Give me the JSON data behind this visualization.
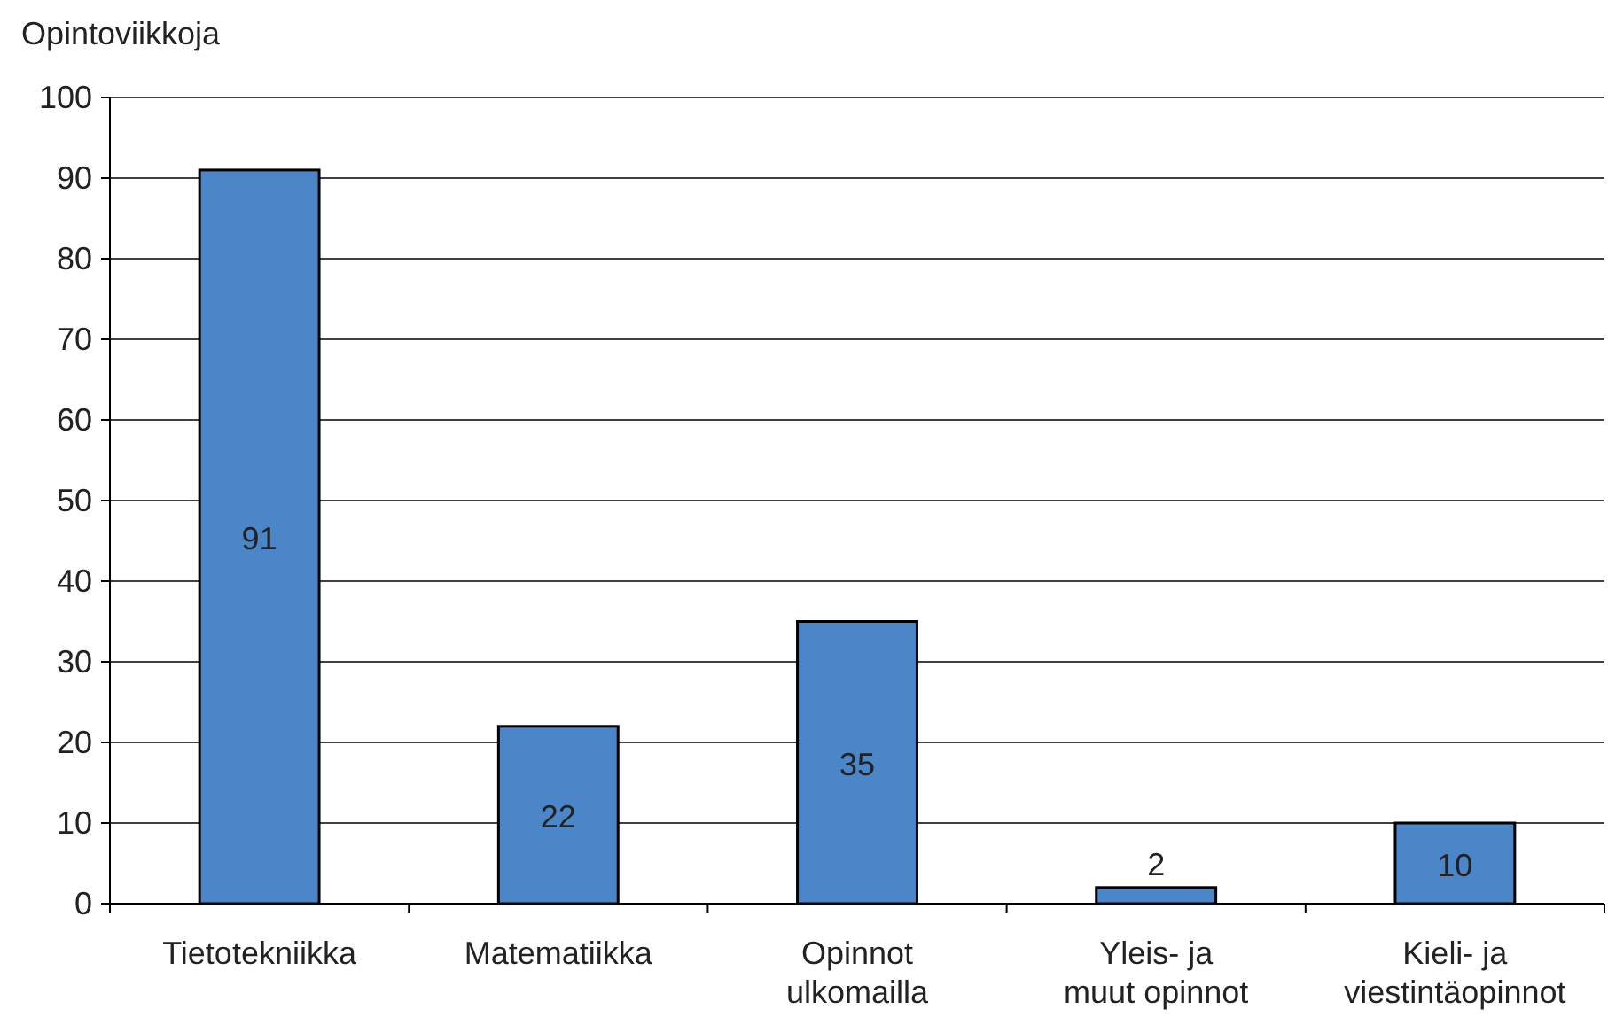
{
  "chart_data": {
    "type": "bar",
    "ylabel": "Opintoviikkoja",
    "categories": [
      "Tietotekniikka",
      "Matematiikka",
      "Opinnot ulkomailla",
      "Yleis- ja muut opinnot",
      "Kieli- ja viestintäopinnot"
    ],
    "values": [
      91,
      22,
      35,
      2,
      10
    ],
    "color": "#4a86c8",
    "ylim": [
      0,
      100
    ],
    "yticks": [
      0,
      10,
      20,
      30,
      40,
      50,
      60,
      70,
      80,
      90,
      100
    ],
    "grid": "y",
    "data_labels": true
  }
}
